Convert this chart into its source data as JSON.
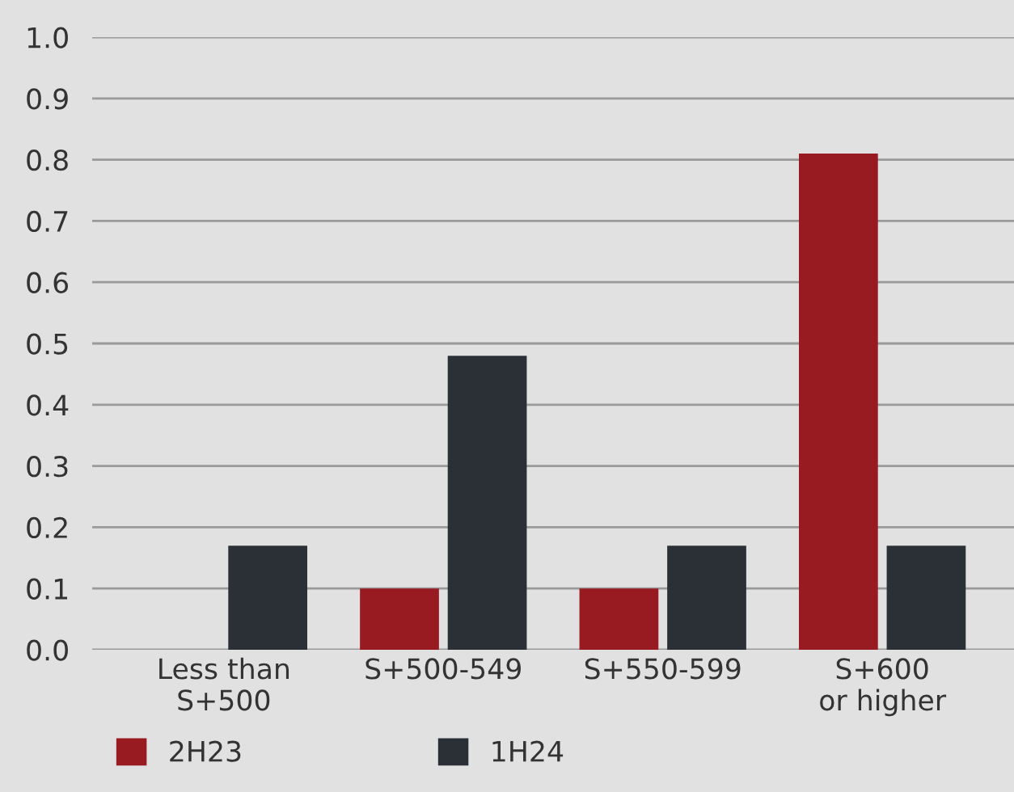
{
  "chart_data": {
    "type": "bar",
    "categories": [
      "Less than\nS+500",
      "S+500-549",
      "S+550-599",
      "S+600\nor higher"
    ],
    "series": [
      {
        "name": "2H23",
        "color": "#981b22",
        "values": [
          0,
          0.1,
          0.1,
          0.81
        ]
      },
      {
        "name": "1H24",
        "color": "#2b2f36",
        "values": [
          0.17,
          0.48,
          0.17,
          0.17
        ]
      }
    ],
    "ylim": [
      0,
      1.0
    ],
    "yticks": [
      {
        "value": 0,
        "label": "0.0"
      },
      0.1,
      0.2,
      0.3,
      0.4,
      0.5,
      0.6,
      0.7,
      0.8,
      0.9,
      {
        "value": 1,
        "label": "1.0"
      }
    ],
    "grid": "y",
    "legend": "bottom left"
  }
}
